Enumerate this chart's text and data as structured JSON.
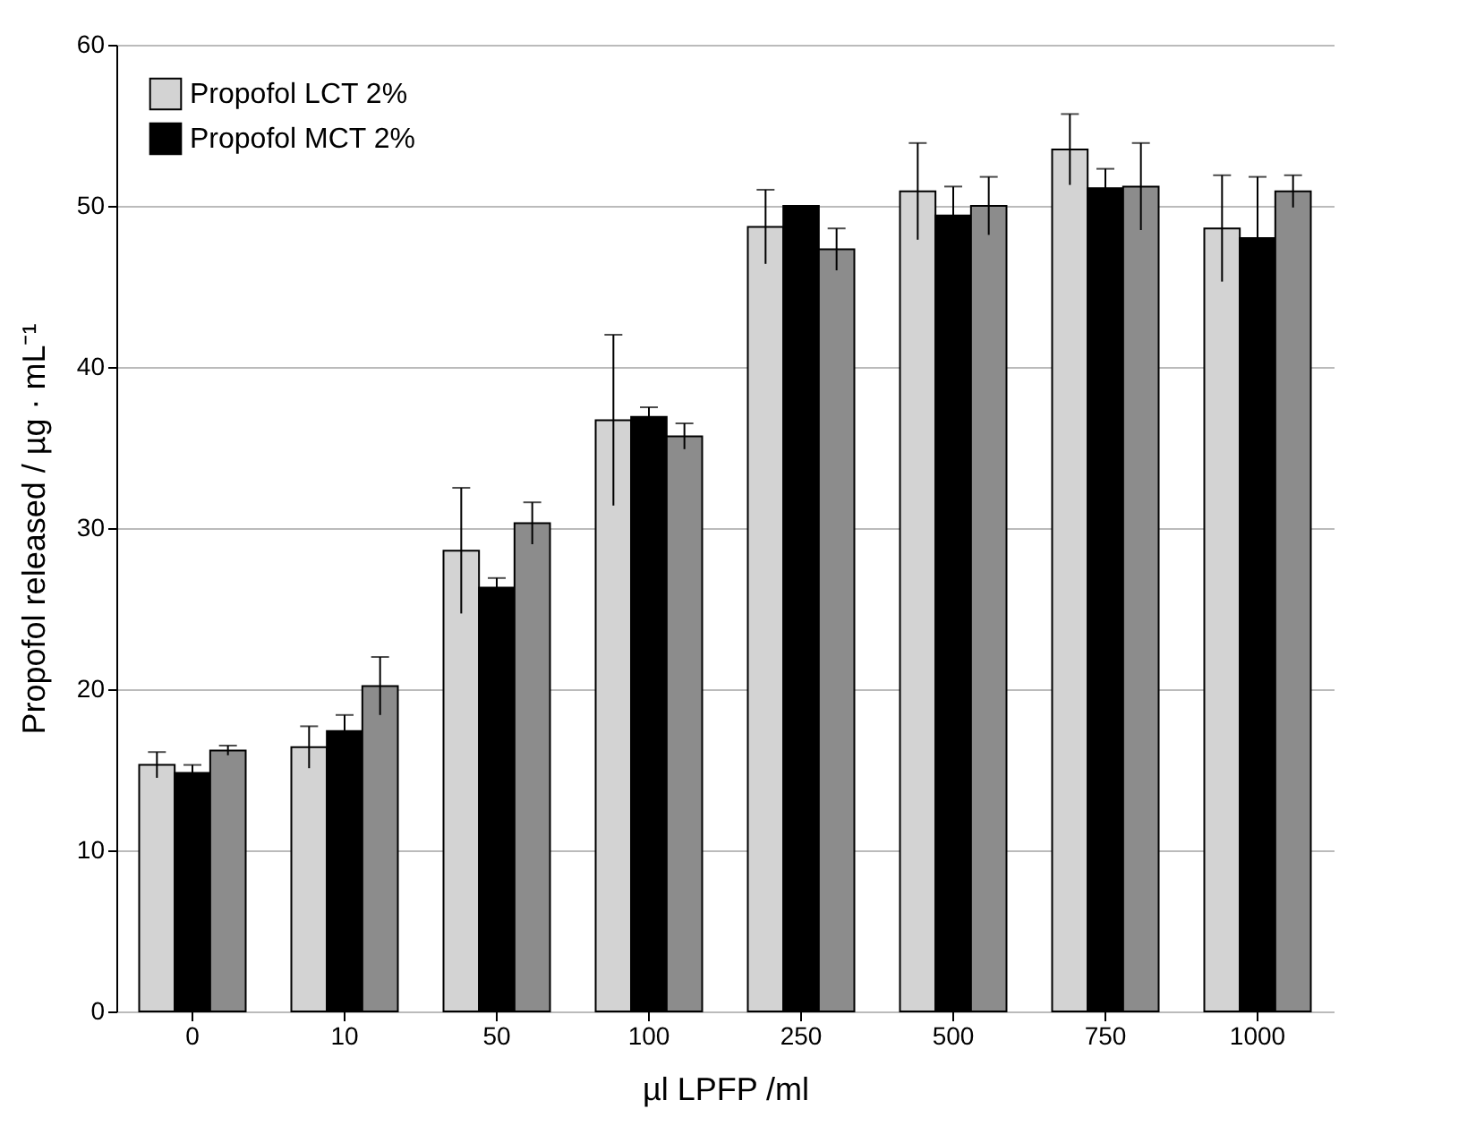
{
  "chart_data": {
    "type": "bar",
    "xlabel": "µl LPFP /ml",
    "ylabel": "Propofol released / µg · mL⁻¹",
    "categories": [
      "0",
      "10",
      "50",
      "100",
      "250",
      "500",
      "750",
      "1000"
    ],
    "series": [
      {
        "name": "Propofol LCT 2%",
        "color": "#d3d3d3",
        "values": [
          15.3,
          16.4,
          28.6,
          36.7,
          48.7,
          50.9,
          53.5,
          48.6
        ],
        "errors": [
          0.8,
          1.3,
          3.9,
          5.3,
          2.3,
          3.0,
          2.2,
          3.3
        ]
      },
      {
        "name": "Propofol MCT 2%",
        "color": "#000000",
        "values": [
          14.8,
          17.4,
          26.3,
          36.9,
          50.0,
          49.4,
          51.1,
          48.0
        ],
        "errors": [
          0.5,
          1.0,
          0.6,
          0.6,
          null,
          1.8,
          1.2,
          3.8
        ]
      },
      {
        "color": "#8c8c8c",
        "values": [
          16.2,
          20.2,
          30.3,
          35.7,
          47.3,
          50.0,
          51.2,
          50.9
        ],
        "errors": [
          0.3,
          1.8,
          1.3,
          0.8,
          1.3,
          1.8,
          2.7,
          1.0
        ]
      }
    ],
    "ylim": [
      0,
      60
    ],
    "yticks": [
      0,
      10,
      20,
      30,
      40,
      50,
      60
    ],
    "grid": "y",
    "legend": "top left"
  }
}
